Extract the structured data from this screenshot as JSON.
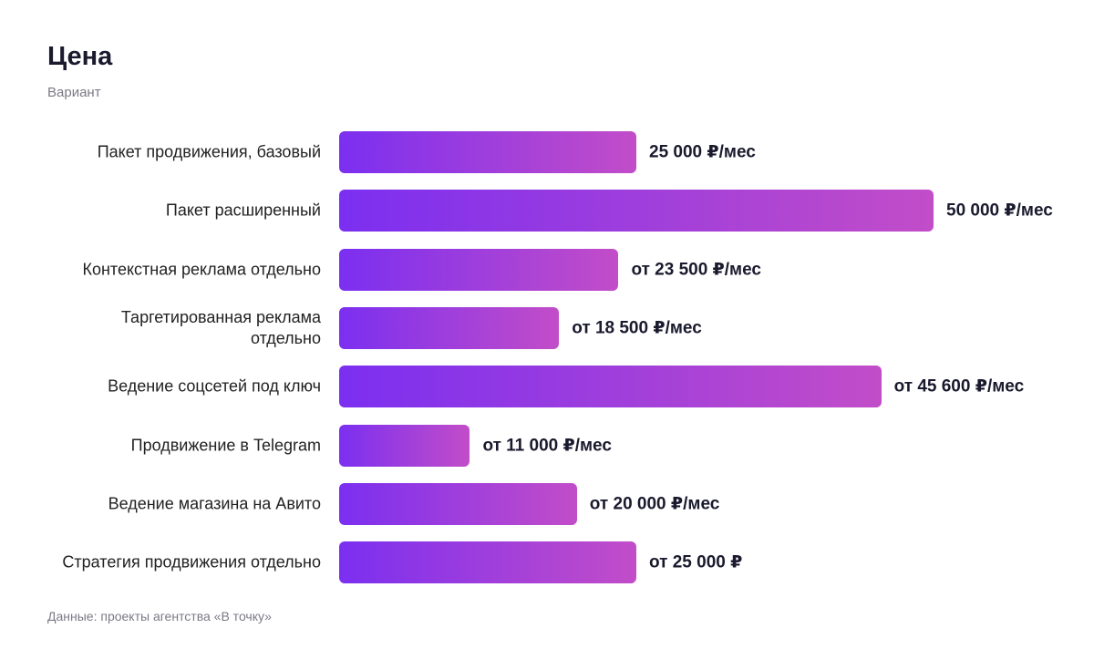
{
  "chart_data": {
    "type": "bar",
    "orientation": "horizontal",
    "title": "Цена",
    "subtitle": "Вариант",
    "source": "Данные: проекты агентства «В точку»",
    "categories": [
      "Пакет продвижения, базовый",
      "Пакет расширенный",
      "Контекстная реклама отдельно",
      "Таргетированная реклама отдельно",
      "Ведение соцсетей под ключ",
      "Продвижение в Telegram",
      "Ведение магазина на Авито",
      "Стратегия продвижения отдельно"
    ],
    "values": [
      25000,
      50000,
      23500,
      18500,
      45600,
      11000,
      20000,
      25000
    ],
    "value_labels": [
      "25 000 ₽/мес",
      "50 000 ₽/мес",
      "от 23 500 ₽/мес",
      "от 18 500 ₽/мес",
      "от 45 600 ₽/мес",
      "от 11 000 ₽/мес",
      "от 20 000 ₽/мес",
      "от 25 000 ₽"
    ],
    "gradient": [
      "#7b2ff0",
      "#c24dc8"
    ]
  }
}
